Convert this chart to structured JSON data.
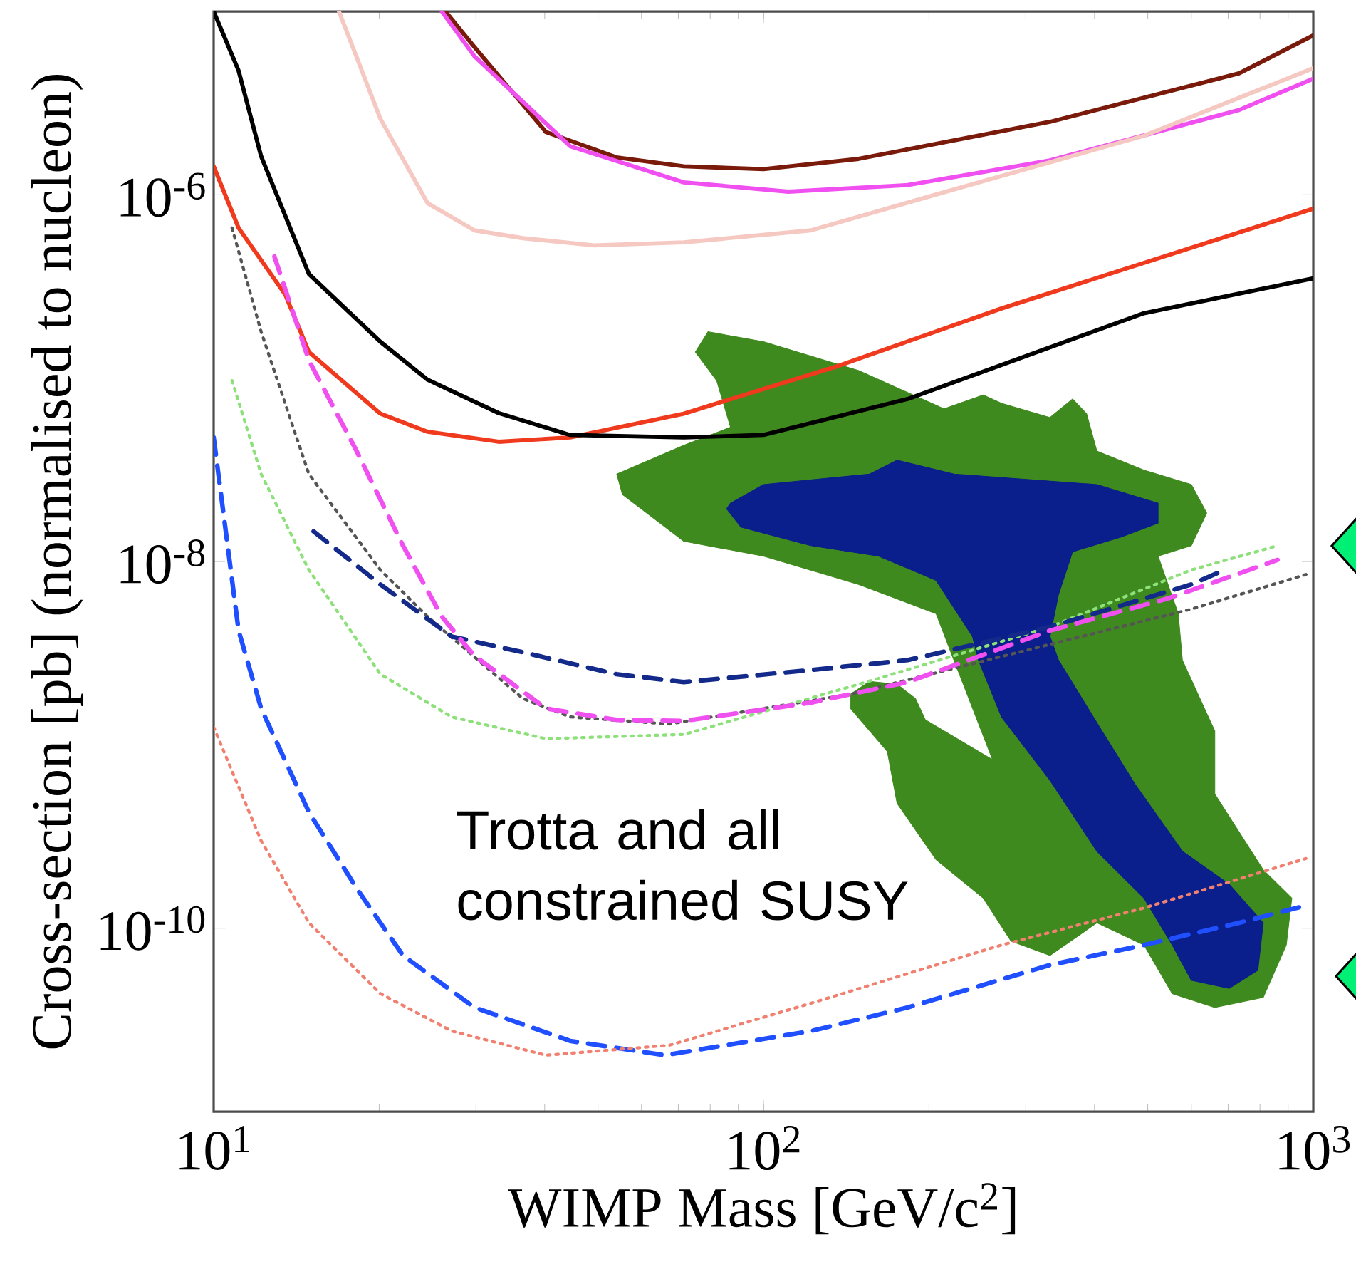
{
  "chart_data": {
    "type": "line",
    "log": "xy",
    "xlabel": "WIMP Mass [GeV/c$^{2}$]",
    "ylabel": "Cross-section [pb] (normalised to nucleon)",
    "xlim": [
      10,
      1000
    ],
    "ylim": [
      1e-11,
      1e-05
    ],
    "xticks": [
      {
        "value": 10,
        "label": "10$^{1}$"
      },
      {
        "value": 100,
        "label": "10$^{2}$"
      },
      {
        "value": 1000,
        "label": "10$^{3}$"
      }
    ],
    "yticks": [
      {
        "value": 1e-10,
        "label": "10$^{-10}$"
      },
      {
        "value": 1e-08,
        "label": "10$^{-8}$"
      },
      {
        "value": 1e-06,
        "label": "10$^{-6}$"
      }
    ],
    "annotations": [
      "Trotta and all constrained SUSY"
    ],
    "series": [
      {
        "type": "area",
        "color": "#3f8a1e",
        "x": [
          79.3,
          100,
          149,
          213,
          251,
          271,
          332,
          365,
          387,
          404,
          492,
          600,
          640,
          600,
          522,
          568,
          578,
          662,
          662,
          811,
          914,
          893,
          811,
          662,
          554,
          492,
          404,
          332,
          282,
          251,
          206,
          175,
          168,
          144,
          144,
          156,
          175,
          189,
          197,
          261,
          222,
          206,
          149,
          100,
          71.6,
          55.4,
          54.1,
          71.6,
          87.1,
          82.2,
          75.2
        ],
        "values": [
          1.79e-07,
          1.58e-07,
          1.1e-07,
          6.8e-08,
          8.1e-08,
          7.3e-08,
          6.1e-08,
          7.7e-08,
          6.4e-08,
          4e-08,
          3.15e-08,
          2.63e-08,
          1.84e-08,
          1.22e-08,
          1.07e-08,
          5.2e-09,
          2.9e-09,
          1.19e-09,
          5.4e-10,
          2.08e-10,
          1.46e-10,
          8.1e-11,
          4.2e-11,
          3.7e-11,
          4.4e-11,
          8.1e-11,
          1.07e-10,
          7.1e-11,
          8.5e-11,
          1.46e-10,
          2.37e-10,
          4.8e-10,
          9.2e-10,
          1.58e-09,
          1.89e-09,
          2.22e-09,
          2.14e-09,
          1.79e-09,
          1.37e-09,
          8.3e-10,
          2.9e-09,
          5.2e-09,
          7.5e-09,
          1.07e-08,
          1.29e-08,
          2.32e-08,
          3e-08,
          4.3e-08,
          5.4e-08,
          9.7e-08,
          1.39e-07
        ]
      },
      {
        "type": "area",
        "color": "#0a1e8c",
        "x": [
          87.1,
          100,
          156,
          175,
          222,
          404,
          522,
          522,
          447,
          365,
          344,
          332,
          344,
          404,
          474,
          578,
          703,
          811,
          793,
          703,
          600,
          554,
          492,
          404,
          332,
          271,
          246,
          240,
          206,
          162,
          122,
          91,
          85.7
        ],
        "values": [
          2.08e-08,
          2.63e-08,
          3e-08,
          3.57e-08,
          3e-08,
          2.63e-08,
          2.08e-08,
          1.62e-08,
          1.36e-08,
          1.13e-08,
          6.6e-09,
          3.9e-09,
          2.9e-09,
          1.32e-09,
          6.1e-10,
          2.63e-10,
          1.74e-10,
          1.07e-10,
          5.9e-11,
          4.7e-11,
          5.2e-11,
          8.1e-11,
          1.46e-10,
          2.63e-10,
          6.4e-10,
          1.42e-09,
          2.9e-09,
          3.9e-09,
          7.9e-09,
          1.07e-08,
          1.22e-08,
          1.54e-08,
          1.94e-08
        ]
      },
      {
        "color": "#7a1a0a",
        "line_style": "solid",
        "x": [
          26.4,
          29.8,
          40.2,
          54,
          71.6,
          100,
          149,
          332,
          733,
          1000
        ],
        "values": [
          1e-05,
          6.4e-06,
          2.2e-06,
          1.6e-06,
          1.43e-06,
          1.38e-06,
          1.57e-06,
          2.5e-06,
          4.6e-06,
          7.4e-06
        ]
      },
      {
        "color": "#f050f0",
        "line_style": "solid",
        "x": [
          26,
          29.8,
          44.5,
          71.6,
          111,
          183,
          332,
          733,
          1000
        ],
        "values": [
          1e-05,
          5.7e-06,
          1.84e-06,
          1.17e-06,
          1.04e-06,
          1.13e-06,
          1.54e-06,
          2.9e-06,
          4.3e-06
        ]
      },
      {
        "color": "#f6c8c2",
        "line_style": "solid",
        "x": [
          16.9,
          20.1,
          24.5,
          29.8,
          36.5,
          49.2,
          71.6,
          122,
          222,
          492,
          1000
        ],
        "values": [
          1e-05,
          2.6e-06,
          9e-07,
          6.4e-07,
          5.8e-07,
          5.3e-07,
          5.5e-07,
          6.4e-07,
          1.07e-06,
          2.1e-06,
          4.9e-06
        ]
      },
      {
        "color": "#f03a1e",
        "line_style": "solid",
        "x": [
          10,
          11.1,
          13.5,
          14.9,
          20.1,
          24.5,
          33,
          44.5,
          71.6,
          136,
          271,
          1000
        ],
        "values": [
          1.43e-06,
          6.6e-07,
          2.85e-07,
          1.39e-07,
          6.4e-08,
          5.1e-08,
          4.5e-08,
          4.75e-08,
          6.4e-08,
          1.16e-07,
          2.4e-07,
          8.4e-07
        ]
      },
      {
        "color": "#000000",
        "line_style": "solid",
        "x": [
          10,
          11.1,
          12.2,
          14.9,
          20.1,
          24.5,
          33,
          44.5,
          71.6,
          100,
          183,
          492,
          1000
        ],
        "values": [
          1e-05,
          4.75e-06,
          1.62e-06,
          3.7e-07,
          1.58e-07,
          9.8e-08,
          6.45e-08,
          4.9e-08,
          4.75e-08,
          4.9e-08,
          7.7e-08,
          2.26e-07,
          3.5e-07
        ]
      },
      {
        "color": "#555555",
        "line_style": "dotted",
        "x": [
          10.8,
          12.2,
          14.9,
          20.1,
          24.5,
          36.5,
          44.5,
          67.4,
          144,
          600,
          970
        ],
        "values": [
          6.6e-07,
          1.79e-07,
          3e-08,
          9e-09,
          5e-09,
          1.79e-09,
          1.42e-09,
          1.3e-09,
          1.89e-09,
          5.5e-09,
          8.5e-09
        ]
      },
      {
        "color": "#8de07a",
        "line_style": "dotted",
        "x": [
          10.8,
          12.2,
          14.9,
          20.1,
          27.1,
          40.2,
          71.6,
          149,
          332,
          600,
          861
        ],
        "values": [
          9.7e-08,
          3e-08,
          9e-09,
          2.43e-09,
          1.42e-09,
          1.08e-09,
          1.14e-09,
          2.14e-09,
          4.4e-09,
          9e-09,
          1.22e-08
        ]
      },
      {
        "color": "#142a8a",
        "line_style": "dashed",
        "x": [
          15.2,
          20.1,
          27.1,
          36.5,
          54,
          71.6,
          122,
          183,
          332,
          600,
          690
        ],
        "values": [
          1.46e-08,
          7.5e-09,
          3.9e-09,
          3.2e-09,
          2.43e-09,
          2.2e-09,
          2.56e-09,
          2.9e-09,
          4.4e-09,
          7.5e-09,
          9e-09
        ]
      },
      {
        "color": "#f050f0",
        "line_style": "dashed",
        "x": [
          12.9,
          14.9,
          18.2,
          22.1,
          26,
          29.8,
          40.2,
          54,
          71.6,
          122,
          183,
          332,
          545,
          861
        ],
        "values": [
          4.6e-07,
          1.25e-07,
          4e-08,
          1.22e-08,
          5e-09,
          3.06e-09,
          1.58e-09,
          1.37e-09,
          1.35e-09,
          1.7e-09,
          2.2e-09,
          4.2e-09,
          6.3e-09,
          1.02e-08
        ]
      },
      {
        "color": "#1f4fff",
        "line_style": "dashed",
        "x": [
          10,
          11.1,
          12.2,
          14.9,
          18.2,
          22.1,
          29.8,
          44.5,
          66.2,
          122,
          183,
          332,
          492,
          733,
          970
        ],
        "values": [
          4.75e-08,
          4.2e-09,
          1.58e-09,
          4.3e-10,
          1.65e-10,
          7.1e-11,
          3.7e-11,
          2.43e-11,
          2.03e-11,
          2.75e-11,
          3.7e-11,
          6.3e-11,
          8.1e-11,
          1.07e-10,
          1.33e-10
        ]
      },
      {
        "color": "#f08070",
        "line_style": "dotted",
        "x": [
          10,
          12.2,
          14.9,
          20.1,
          27.1,
          40.2,
          67.4,
          122,
          271,
          492,
          970
        ],
        "values": [
          1.25e-09,
          3e-10,
          1.07e-10,
          4.4e-11,
          2.75e-11,
          2.03e-11,
          2.3e-11,
          3.9e-11,
          8.1e-11,
          1.29e-10,
          2.4e-10
        ]
      }
    ]
  }
}
